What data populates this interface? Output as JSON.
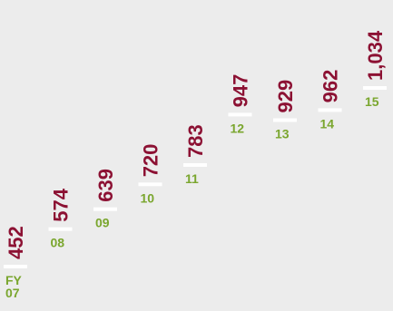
{
  "chart_data": {
    "type": "bar",
    "title": "",
    "xlabel": "",
    "ylabel": "",
    "categories": [
      "FY 07",
      "08",
      "09",
      "10",
      "11",
      "12",
      "13",
      "14",
      "15"
    ],
    "category_lines": [
      [
        "FY",
        "07"
      ],
      [
        "08"
      ],
      [
        "09"
      ],
      [
        "10"
      ],
      [
        "11"
      ],
      [
        "12"
      ],
      [
        "13"
      ],
      [
        "14"
      ],
      [
        "15"
      ]
    ],
    "values": [
      452,
      574,
      639,
      720,
      783,
      947,
      929,
      962,
      1034
    ],
    "value_labels": [
      "452",
      "574",
      "639",
      "720",
      "783",
      "947",
      "929",
      "962",
      "1,034"
    ],
    "ylim": [
      0,
      1034
    ],
    "grid": false,
    "legend": "none"
  },
  "colors": {
    "background": "#ececec",
    "value_text": "#8c1133",
    "year_text": "#7aa62e",
    "marker": "#ffffff"
  }
}
